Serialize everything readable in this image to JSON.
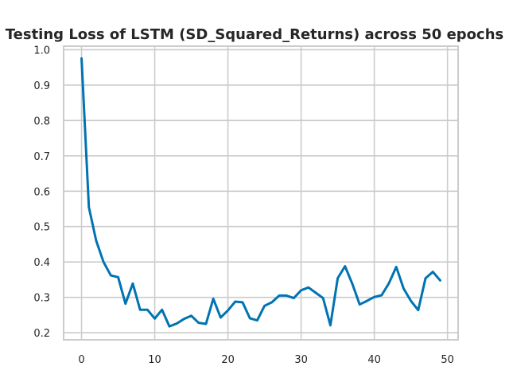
{
  "chart_data": {
    "type": "line",
    "title": "Testing Loss of LSTM (SD_Squared_Returns) across 50 epochs",
    "xlabel": "",
    "ylabel": "",
    "xlim": [
      -2.45,
      51.45
    ],
    "ylim": [
      0.18,
      1.01
    ],
    "x_ticks": [
      0,
      10,
      20,
      30,
      40,
      50
    ],
    "y_ticks": [
      0.2,
      0.3,
      0.4,
      0.5,
      0.6,
      0.7,
      0.8,
      0.9,
      1.0
    ],
    "x_tick_labels": [
      "0",
      "10",
      "20",
      "30",
      "40",
      "50"
    ],
    "y_tick_labels": [
      "0.2",
      "0.3",
      "0.4",
      "0.5",
      "0.6",
      "0.7",
      "0.8",
      "0.9",
      "1.0"
    ],
    "grid": true,
    "legend": "none",
    "x": [
      0,
      1,
      2,
      3,
      4,
      5,
      6,
      7,
      8,
      9,
      10,
      11,
      12,
      13,
      14,
      15,
      16,
      17,
      18,
      19,
      20,
      21,
      22,
      23,
      24,
      25,
      26,
      27,
      28,
      29,
      30,
      31,
      32,
      33,
      34,
      35,
      36,
      37,
      38,
      39,
      40,
      41,
      42,
      43,
      44,
      45,
      46,
      47,
      48,
      49
    ],
    "series": [
      {
        "color": "#0173b2",
        "values": [
          0.975,
          0.555,
          0.46,
          0.4,
          0.362,
          0.357,
          0.282,
          0.339,
          0.265,
          0.265,
          0.24,
          0.265,
          0.218,
          0.226,
          0.239,
          0.248,
          0.228,
          0.225,
          0.296,
          0.243,
          0.263,
          0.288,
          0.286,
          0.241,
          0.235,
          0.276,
          0.286,
          0.305,
          0.305,
          0.298,
          0.32,
          0.328,
          0.313,
          0.298,
          0.221,
          0.354,
          0.388,
          0.338,
          0.28,
          0.29,
          0.301,
          0.306,
          0.34,
          0.386,
          0.325,
          0.29,
          0.264,
          0.354,
          0.372,
          0.348
        ]
      }
    ]
  }
}
